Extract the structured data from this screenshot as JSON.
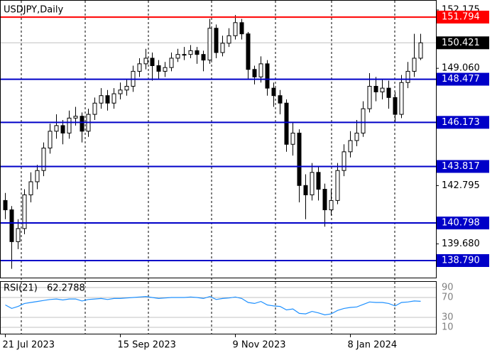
{
  "chart_data": {
    "type": "candlestick",
    "title": "USDJPY,Daily",
    "categories": [
      "21 Jul 2023",
      null,
      null,
      null,
      null,
      null,
      null,
      null,
      null,
      null,
      null,
      null,
      null,
      null,
      null,
      null,
      null,
      null,
      "15 Sep 2023",
      null,
      null,
      null,
      null,
      null,
      null,
      null,
      null,
      null,
      null,
      null,
      null,
      null,
      null,
      null,
      null,
      null,
      "9 Nov 2023",
      null,
      null,
      null,
      null,
      null,
      null,
      null,
      null,
      null,
      null,
      null,
      null,
      null,
      null,
      null,
      null,
      null,
      "8 Jan 2024",
      null,
      null,
      null,
      null,
      null,
      null,
      null,
      null,
      null,
      null,
      null
    ],
    "open": [
      142.0,
      141.5,
      139.8,
      140.5,
      142.3,
      143.0,
      143.6,
      144.8,
      145.7,
      146.0,
      145.6,
      146.4,
      146.5,
      145.7,
      146.6,
      147.2,
      147.6,
      147.2,
      147.7,
      147.9,
      148.1,
      148.9,
      149.3,
      149.6,
      149.2,
      148.9,
      149.1,
      149.6,
      149.8,
      149.8,
      150.0,
      149.8,
      149.5,
      151.2,
      149.9,
      150.4,
      150.8,
      151.5,
      150.9,
      149.0,
      148.6,
      149.3,
      148.0,
      147.6,
      147.2,
      145.0,
      145.6,
      142.8,
      142.3,
      143.5,
      142.6,
      141.5,
      142.0,
      143.6,
      144.6,
      145.2,
      145.6,
      146.9,
      148.1,
      147.8,
      148.0,
      147.5,
      146.6,
      148.3,
      148.9,
      149.6
    ],
    "high": [
      142.4,
      141.7,
      141.0,
      142.6,
      143.5,
      143.9,
      145.1,
      146.1,
      146.6,
      146.3,
      146.8,
      147.0,
      146.7,
      146.9,
      147.5,
      148.0,
      147.9,
      148.0,
      148.3,
      148.5,
      149.2,
      149.6,
      150.1,
      149.9,
      149.5,
      149.4,
      149.9,
      150.1,
      150.2,
      150.3,
      150.2,
      150.0,
      151.7,
      151.4,
      150.8,
      151.2,
      151.9,
      151.7,
      151.0,
      149.2,
      149.7,
      149.5,
      148.3,
      147.9,
      147.4,
      146.2,
      145.8,
      143.4,
      144.0,
      143.8,
      142.9,
      142.6,
      144.0,
      145.0,
      145.7,
      146.3,
      147.3,
      148.8,
      148.6,
      148.5,
      148.4,
      147.8,
      148.7,
      149.4,
      150.9,
      150.9
    ],
    "low": [
      141.0,
      138.35,
      139.4,
      140.2,
      141.9,
      142.6,
      143.3,
      144.5,
      145.3,
      145.0,
      145.3,
      146.0,
      145.1,
      145.4,
      146.3,
      146.9,
      146.8,
      146.9,
      147.4,
      147.6,
      147.8,
      148.6,
      149.0,
      148.4,
      148.5,
      148.6,
      148.9,
      149.4,
      149.5,
      149.6,
      149.3,
      148.9,
      149.3,
      149.6,
      149.7,
      150.2,
      150.6,
      150.6,
      148.5,
      148.2,
      148.3,
      147.6,
      147.0,
      146.6,
      144.6,
      144.4,
      141.9,
      141.0,
      142.0,
      142.0,
      140.6,
      141.2,
      141.8,
      143.3,
      144.3,
      144.9,
      145.4,
      146.7,
      147.3,
      147.4,
      146.9,
      146.2,
      146.4,
      148.0,
      148.6,
      149.5
    ],
    "close": [
      141.5,
      139.8,
      140.5,
      142.3,
      143.0,
      143.6,
      144.8,
      145.7,
      146.0,
      145.6,
      146.4,
      146.5,
      145.7,
      146.6,
      147.2,
      147.6,
      147.2,
      147.7,
      147.9,
      148.1,
      148.9,
      149.3,
      149.6,
      149.2,
      148.9,
      149.1,
      149.6,
      149.8,
      149.8,
      150.0,
      149.8,
      149.5,
      151.2,
      149.9,
      150.4,
      150.8,
      151.5,
      150.9,
      149.0,
      148.6,
      149.3,
      148.0,
      147.6,
      147.2,
      145.0,
      145.6,
      142.8,
      142.3,
      143.5,
      142.6,
      141.5,
      142.0,
      143.6,
      144.6,
      145.2,
      145.6,
      146.9,
      148.1,
      147.8,
      148.0,
      147.5,
      146.6,
      148.3,
      148.9,
      149.6,
      150.421
    ],
    "ylim": [
      137.88,
      152.67
    ],
    "yticks": [
      152.175,
      {
        "value": 149.06,
        "label": "149.060"
      },
      142.795,
      {
        "value": 139.68,
        "label": "139.680"
      }
    ],
    "levels": [
      {
        "value": 151.794,
        "color": "#ff0000"
      },
      {
        "value": 148.477,
        "color": "#0000c8"
      },
      {
        "value": 146.173,
        "color": "#0000c8"
      },
      {
        "value": 143.817,
        "color": "#0000c8"
      },
      {
        "value": 140.798,
        "color": "#0000c8"
      },
      {
        "value": 138.79,
        "label": "138.790",
        "color": "#0000c8"
      }
    ],
    "current": {
      "value": 150.421,
      "color": "#000000"
    },
    "rsi": {
      "title": "RSI(21)",
      "color": "#1e90ff",
      "values": [
        55,
        48,
        52,
        58,
        60,
        62,
        64,
        66,
        67,
        65,
        67,
        67,
        63,
        66,
        67,
        68,
        66,
        68,
        68,
        69,
        70,
        71,
        72,
        70,
        68,
        69,
        70,
        70,
        70,
        71,
        70,
        68,
        72,
        66,
        68,
        69,
        71,
        68,
        60,
        58,
        62,
        55,
        53,
        52,
        45,
        47,
        38,
        37,
        42,
        39,
        35,
        37,
        44,
        48,
        50,
        51,
        56,
        61,
        60,
        60,
        58,
        53,
        60,
        61,
        63,
        62.2788
      ],
      "ylim": [
        0,
        100
      ],
      "yticks": [
        90,
        70,
        30,
        10
      ]
    }
  }
}
